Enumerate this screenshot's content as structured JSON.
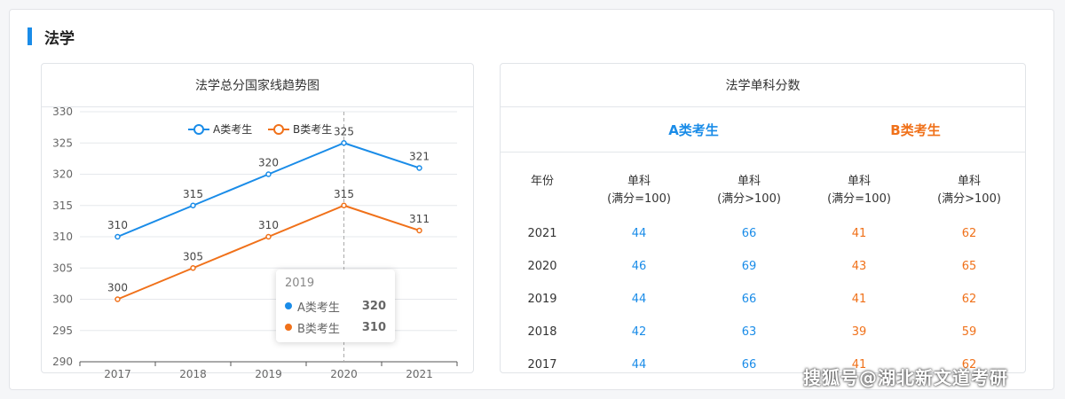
{
  "section": {
    "title": "法学"
  },
  "left_card": {
    "title": "法学总分国家线趋势图"
  },
  "chart_data": {
    "type": "line",
    "title": "法学总分国家线趋势图",
    "categories": [
      "2017",
      "2018",
      "2019",
      "2020",
      "2021"
    ],
    "series": [
      {
        "name": "A类考生",
        "color": "#1a8ce8",
        "values": [
          310,
          315,
          320,
          325,
          321
        ]
      },
      {
        "name": "B类考生",
        "color": "#f0711a",
        "values": [
          300,
          305,
          310,
          315,
          311
        ]
      }
    ],
    "yticks": [
      290,
      295,
      300,
      305,
      310,
      315,
      320,
      325,
      330
    ],
    "ylim": [
      290,
      330
    ],
    "legend": "top-center",
    "grid": true
  },
  "tooltip": {
    "title": "2019",
    "rows": [
      {
        "name": "A类考生",
        "value": "320",
        "color": "#1a8ce8"
      },
      {
        "name": "B类考生",
        "value": "310",
        "color": "#f0711a"
      }
    ]
  },
  "right_card": {
    "title": "法学单科分数",
    "group_a": "A类考生",
    "group_b": "B类考生",
    "headers": [
      {
        "l1": "年份",
        "l2": ""
      },
      {
        "l1": "单科",
        "l2": "(满分=100)"
      },
      {
        "l1": "单科",
        "l2": "(满分>100)"
      },
      {
        "l1": "单科",
        "l2": "(满分=100)"
      },
      {
        "l1": "单科",
        "l2": "(满分>100)"
      }
    ],
    "rows": [
      [
        "2021",
        "44",
        "66",
        "41",
        "62"
      ],
      [
        "2020",
        "46",
        "69",
        "43",
        "65"
      ],
      [
        "2019",
        "44",
        "66",
        "41",
        "62"
      ],
      [
        "2018",
        "42",
        "63",
        "39",
        "59"
      ],
      [
        "2017",
        "44",
        "66",
        "41",
        "62"
      ]
    ]
  },
  "watermark": "搜狐号@湖北新文道考研"
}
